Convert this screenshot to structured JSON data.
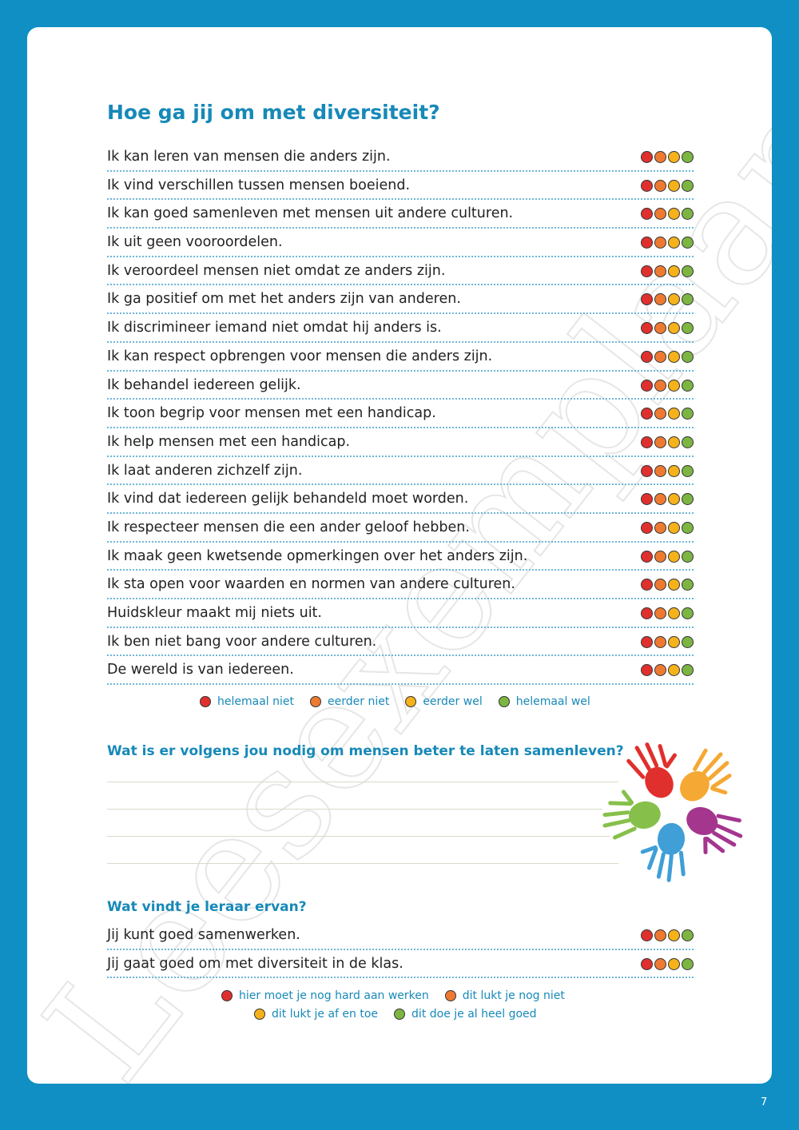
{
  "page_title": "Hoe ga jij om met diversiteit?",
  "watermark": "Leesexemplaar",
  "colors": {
    "background": "#0f8fc4",
    "accent": "#1789b8",
    "helemaal_niet": "#e0302d",
    "eerder_niet": "#ee7a32",
    "eerder_wel": "#f5b21a",
    "helemaal_wel": "#7db543"
  },
  "statements": [
    "Ik kan leren van mensen die anders zijn.",
    "Ik vind verschillen tussen mensen boeiend.",
    "Ik kan goed samenleven met mensen uit andere culturen.",
    "Ik uit geen vooroordelen.",
    "Ik veroordeel mensen niet omdat ze anders zijn.",
    "Ik ga positief om met het anders zijn van anderen.",
    "Ik discrimineer iemand niet omdat hij anders is.",
    "Ik kan respect opbrengen voor mensen die anders zijn.",
    "Ik behandel iedereen gelijk.",
    "Ik toon begrip voor mensen met een handicap.",
    "Ik help mensen met een handicap.",
    "Ik laat anderen zichzelf zijn.",
    "Ik vind dat iedereen gelijk behandeld moet worden.",
    "Ik respecteer mensen die een ander geloof hebben.",
    "Ik maak geen kwetsende opmerkingen over het anders zijn.",
    "Ik sta open voor waarden en normen van andere culturen.",
    "Huidskleur maakt mij niets uit.",
    "Ik ben niet bang voor andere culturen.",
    "De wereld is van iedereen."
  ],
  "self_legend": [
    "helemaal niet",
    "eerder niet",
    "eerder wel",
    "helemaal wel"
  ],
  "question": "Wat is er volgens jou nodig om mensen beter te laten samenleven?",
  "teacher_heading": "Wat vindt je leraar ervan?",
  "teacher_statements": [
    "Jij kunt goed samenwerken.",
    "Jij gaat goed om met diversiteit in de klas."
  ],
  "teacher_legend": [
    "hier moet je nog hard aan werken",
    "dit lukt je nog niet",
    "dit lukt je af en toe",
    "dit doe je al heel goed"
  ],
  "page_number": "7",
  "icons": [
    "rating-dot-red",
    "rating-dot-orange",
    "rating-dot-yellow",
    "rating-dot-green",
    "colorful-hands-illustration"
  ]
}
